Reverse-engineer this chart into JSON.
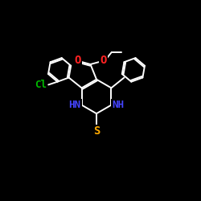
{
  "bg_color": "#000000",
  "bond_color": "#ffffff",
  "O_color": "#ff2222",
  "N_color": "#4444ff",
  "S_color": "#ffaa00",
  "Cl_color": "#00bb00",
  "bond_width": 1.4,
  "font_size": 9,
  "xlim": [
    0,
    10
  ],
  "ylim": [
    0,
    10
  ]
}
